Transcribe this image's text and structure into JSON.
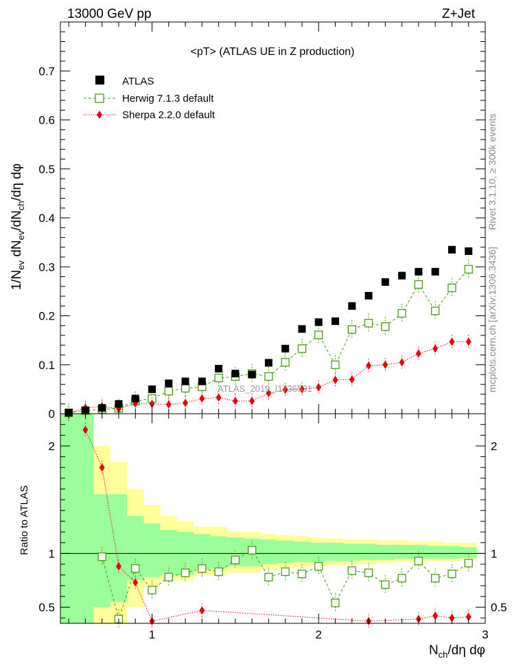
{
  "header": {
    "left": "13000 GeV pp",
    "right": "Z+Jet"
  },
  "side_labels": {
    "rivet": "Rivet 3.1.10, ≥ 300k events",
    "mcplots": "mcplots.cern.ch [arXiv:1306.3436]"
  },
  "chart_data": [
    {
      "type": "scatter",
      "title": "<pT> (ATLAS UE in Z production)",
      "watermark": "ATLAS_2019_I1736531",
      "xlabel": "N_ch/dη dφ",
      "ylabel": "1/N_ev dN_ev/dN_ch/dη dφ",
      "xlim": [
        0.45,
        3.0
      ],
      "ylim": [
        0,
        0.8
      ],
      "yticks": [
        0,
        0.1,
        0.2,
        0.3,
        0.4,
        0.5,
        0.6,
        0.7
      ],
      "ytick_labels": [
        "0",
        "0.1",
        "0.2",
        "0.3",
        "0.4",
        "0.5",
        "0.6",
        "0.7"
      ],
      "legend_position": "top-left",
      "series": [
        {
          "name": "ATLAS",
          "marker": "filled-square",
          "color": "#000000",
          "x": [
            0.5,
            0.6,
            0.7,
            0.8,
            0.9,
            1.0,
            1.1,
            1.2,
            1.3,
            1.4,
            1.5,
            1.6,
            1.7,
            1.8,
            1.9,
            2.0,
            2.1,
            2.2,
            2.3,
            2.4,
            2.5,
            2.6,
            2.7,
            2.8,
            2.9
          ],
          "y": [
            0.002,
            0.007,
            0.012,
            0.02,
            0.031,
            0.05,
            0.062,
            0.066,
            0.066,
            0.092,
            0.082,
            0.08,
            0.104,
            0.133,
            0.173,
            0.187,
            0.189,
            0.22,
            0.241,
            0.269,
            0.282,
            0.29,
            0.29,
            0.335,
            0.332
          ]
        },
        {
          "name": "Herwig 7.1.3 default",
          "marker": "open-square",
          "color": "#4a9a1a",
          "line": "dashed",
          "x": [
            0.5,
            0.6,
            0.7,
            0.8,
            0.9,
            1.0,
            1.1,
            1.2,
            1.3,
            1.4,
            1.5,
            1.6,
            1.7,
            1.8,
            1.9,
            2.0,
            2.1,
            2.2,
            2.3,
            2.4,
            2.5,
            2.6,
            2.7,
            2.8,
            2.9
          ],
          "y": [
            0.002,
            0.006,
            0.009,
            0.011,
            0.026,
            0.031,
            0.046,
            0.052,
            0.055,
            0.073,
            0.076,
            0.082,
            0.076,
            0.105,
            0.133,
            0.161,
            0.1,
            0.172,
            0.185,
            0.178,
            0.205,
            0.264,
            0.21,
            0.257,
            0.295
          ]
        },
        {
          "name": "Sherpa 2.2.0 default",
          "marker": "diamond",
          "color": "#e8000b",
          "line": "dotted",
          "x": [
            0.5,
            0.6,
            0.7,
            0.8,
            0.9,
            1.0,
            1.1,
            1.2,
            1.3,
            1.4,
            1.5,
            1.6,
            1.7,
            1.8,
            1.9,
            2.0,
            2.1,
            2.2,
            2.3,
            2.4,
            2.5,
            2.6,
            2.7,
            2.8,
            2.9
          ],
          "y": [
            0.001,
            0.012,
            0.015,
            0.01,
            0.021,
            0.02,
            0.019,
            0.022,
            0.031,
            0.033,
            0.026,
            0.026,
            0.042,
            0.049,
            0.05,
            0.054,
            0.069,
            0.07,
            0.098,
            0.1,
            0.105,
            0.123,
            0.133,
            0.147,
            0.147
          ]
        }
      ]
    },
    {
      "type": "scatter",
      "ylabel": "Ratio to ATLAS",
      "xlim": [
        0.45,
        3.0
      ],
      "ylim": [
        0.35,
        2.3
      ],
      "yticks": [
        0.5,
        1,
        2
      ],
      "ytick_labels": [
        "0.5",
        "1",
        "2"
      ],
      "xticks": [
        1,
        2,
        3
      ],
      "xtick_labels": [
        "1",
        "2",
        "3"
      ],
      "reference_line": 1,
      "bands": {
        "x_edges": [
          0.45,
          0.55,
          0.65,
          0.75,
          0.85,
          0.95,
          1.05,
          1.15,
          1.25,
          1.35,
          1.45,
          1.55,
          1.65,
          1.75,
          1.85,
          1.95,
          2.05,
          2.15,
          2.25,
          2.35,
          2.45,
          2.55,
          2.65,
          2.75,
          2.85,
          2.95
        ],
        "inner_color": "#9aff9a",
        "outer_color": "#ffff99",
        "inner": [
          [
            0.35,
            2.3
          ],
          [
            0.35,
            2.3
          ],
          [
            0.5,
            1.55
          ],
          [
            0.55,
            1.55
          ],
          [
            0.75,
            1.35
          ],
          [
            0.78,
            1.28
          ],
          [
            0.8,
            1.22
          ],
          [
            0.8,
            1.2
          ],
          [
            0.85,
            1.18
          ],
          [
            0.86,
            1.16
          ],
          [
            0.88,
            1.15
          ],
          [
            0.88,
            1.14
          ],
          [
            0.9,
            1.13
          ],
          [
            0.91,
            1.12
          ],
          [
            0.92,
            1.11
          ],
          [
            0.92,
            1.1
          ],
          [
            0.93,
            1.1
          ],
          [
            0.93,
            1.09
          ],
          [
            0.94,
            1.09
          ],
          [
            0.94,
            1.08
          ],
          [
            0.95,
            1.08
          ],
          [
            0.95,
            1.08
          ],
          [
            0.95,
            1.07
          ],
          [
            0.95,
            1.07
          ],
          [
            0.96,
            1.06
          ]
        ],
        "outer": [
          [
            0.35,
            2.3
          ],
          [
            0.35,
            2.3
          ],
          [
            0.35,
            2.0
          ],
          [
            0.35,
            1.85
          ],
          [
            0.5,
            1.6
          ],
          [
            0.7,
            1.45
          ],
          [
            0.75,
            1.35
          ],
          [
            0.75,
            1.3
          ],
          [
            0.8,
            1.25
          ],
          [
            0.8,
            1.25
          ],
          [
            0.82,
            1.2
          ],
          [
            0.82,
            1.2
          ],
          [
            0.85,
            1.18
          ],
          [
            0.86,
            1.17
          ],
          [
            0.87,
            1.16
          ],
          [
            0.88,
            1.15
          ],
          [
            0.89,
            1.14
          ],
          [
            0.9,
            1.13
          ],
          [
            0.9,
            1.13
          ],
          [
            0.91,
            1.12
          ],
          [
            0.92,
            1.12
          ],
          [
            0.92,
            1.11
          ],
          [
            0.93,
            1.11
          ],
          [
            0.93,
            1.1
          ],
          [
            0.94,
            1.1
          ]
        ]
      },
      "series": [
        {
          "name": "Herwig 7.1.3 default",
          "marker": "open-square",
          "color": "#4a9a1a",
          "line": "dashed",
          "x": [
            0.7,
            0.8,
            0.9,
            1.0,
            1.1,
            1.2,
            1.3,
            1.4,
            1.5,
            1.6,
            1.7,
            1.8,
            1.9,
            2.0,
            2.1,
            2.2,
            2.3,
            2.4,
            2.5,
            2.6,
            2.7,
            2.8,
            2.9
          ],
          "y": [
            0.97,
            0.39,
            0.86,
            0.66,
            0.78,
            0.82,
            0.86,
            0.83,
            0.94,
            1.03,
            0.78,
            0.83,
            0.81,
            0.88,
            0.54,
            0.84,
            0.82,
            0.71,
            0.77,
            0.93,
            0.77,
            0.81,
            0.91
          ]
        },
        {
          "name": "Sherpa 2.2.0 default",
          "marker": "diamond",
          "color": "#e8000b",
          "line": "dotted",
          "x": [
            0.6,
            0.7,
            0.8,
            0.9,
            1.0,
            1.3,
            2.3,
            2.6,
            2.7,
            2.8,
            2.9
          ],
          "y": [
            2.15,
            1.8,
            0.88,
            0.73,
            0.37,
            0.47,
            0.37,
            0.39,
            0.42,
            0.4,
            0.41
          ]
        }
      ]
    }
  ]
}
